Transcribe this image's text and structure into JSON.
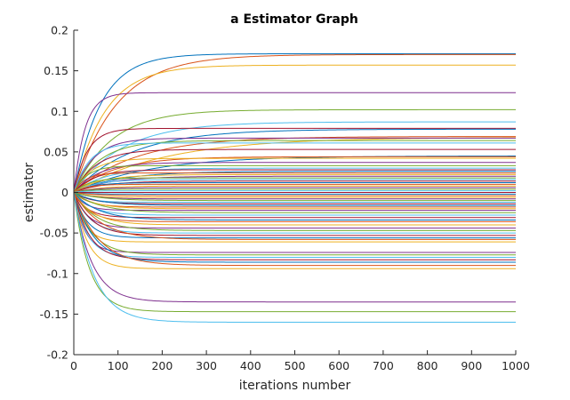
{
  "chart_data": {
    "type": "line",
    "title": "a Estimator Graph",
    "xlabel": "iterations number",
    "ylabel": "estimator",
    "xlim": [
      0,
      1000
    ],
    "ylim": [
      -0.2,
      0.2
    ],
    "xticks": [
      0,
      100,
      200,
      300,
      400,
      500,
      600,
      700,
      800,
      900,
      1000
    ],
    "yticks": [
      -0.2,
      -0.15,
      -0.1,
      -0.05,
      0,
      0.05,
      0.1,
      0.15,
      0.2
    ],
    "xtick_labels": [
      "0",
      "100",
      "200",
      "300",
      "400",
      "500",
      "600",
      "700",
      "800",
      "900",
      "1000"
    ],
    "ytick_labels": [
      "-0.2",
      "-0.15",
      "-0.1",
      "-0.05",
      "0",
      "0.05",
      "0.1",
      "0.15",
      "0.2"
    ],
    "grid": false,
    "legend": "none",
    "series_model": "each series starts at 0 and converges exponentially to its final value: y(x) = final * (1 - exp(-x / rate))",
    "colors": [
      "#0072bd",
      "#d95319",
      "#edb120",
      "#7e2f8e",
      "#77ac30",
      "#4dbeee",
      "#a2142f"
    ],
    "series": [
      {
        "final": 0.171,
        "rate": 60
      },
      {
        "final": 0.17,
        "rate": 95
      },
      {
        "final": 0.157,
        "rate": 70
      },
      {
        "final": 0.123,
        "rate": 25
      },
      {
        "final": 0.102,
        "rate": 85
      },
      {
        "final": 0.087,
        "rate": 110
      },
      {
        "final": 0.079,
        "rate": 30
      },
      {
        "final": 0.078,
        "rate": 130
      },
      {
        "final": 0.069,
        "rate": 140
      },
      {
        "final": 0.068,
        "rate": 200
      },
      {
        "final": 0.067,
        "rate": 45
      },
      {
        "final": 0.064,
        "rate": 60
      },
      {
        "final": 0.061,
        "rate": 35
      },
      {
        "final": 0.053,
        "rate": 50
      },
      {
        "final": 0.045,
        "rate": 170
      },
      {
        "final": 0.044,
        "rate": 90
      },
      {
        "final": 0.042,
        "rate": 40
      },
      {
        "final": 0.037,
        "rate": 55
      },
      {
        "final": 0.033,
        "rate": 30
      },
      {
        "final": 0.03,
        "rate": 70
      },
      {
        "final": 0.028,
        "rate": 45
      },
      {
        "final": 0.026,
        "rate": 100
      },
      {
        "final": 0.024,
        "rate": 25
      },
      {
        "final": 0.022,
        "rate": 60
      },
      {
        "final": 0.02,
        "rate": 80
      },
      {
        "final": 0.018,
        "rate": 35
      },
      {
        "final": 0.016,
        "rate": 50
      },
      {
        "final": 0.014,
        "rate": 65
      },
      {
        "final": 0.012,
        "rate": 40
      },
      {
        "final": 0.01,
        "rate": 30
      },
      {
        "final": 0.008,
        "rate": 55
      },
      {
        "final": 0.006,
        "rate": 45
      },
      {
        "final": 0.004,
        "rate": 35
      },
      {
        "final": 0.002,
        "rate": 25
      },
      {
        "final": 0.0,
        "rate": 40
      },
      {
        "final": -0.002,
        "rate": 30
      },
      {
        "final": -0.004,
        "rate": 50
      },
      {
        "final": -0.006,
        "rate": 35
      },
      {
        "final": -0.008,
        "rate": 45
      },
      {
        "final": -0.01,
        "rate": 60
      },
      {
        "final": -0.012,
        "rate": 30
      },
      {
        "final": -0.014,
        "rate": 40
      },
      {
        "final": -0.016,
        "rate": 55
      },
      {
        "final": -0.018,
        "rate": 35
      },
      {
        "final": -0.02,
        "rate": 45
      },
      {
        "final": -0.022,
        "rate": 25
      },
      {
        "final": -0.025,
        "rate": 60
      },
      {
        "final": -0.028,
        "rate": 40
      },
      {
        "final": -0.031,
        "rate": 30
      },
      {
        "final": -0.034,
        "rate": 55
      },
      {
        "final": -0.036,
        "rate": 35
      },
      {
        "final": -0.04,
        "rate": 45
      },
      {
        "final": -0.044,
        "rate": 30
      },
      {
        "final": -0.047,
        "rate": 50
      },
      {
        "final": -0.05,
        "rate": 35
      },
      {
        "final": -0.053,
        "rate": 40
      },
      {
        "final": -0.056,
        "rate": 30
      },
      {
        "final": -0.058,
        "rate": 60
      },
      {
        "final": -0.061,
        "rate": 25
      },
      {
        "final": -0.074,
        "rate": 25
      },
      {
        "final": -0.077,
        "rate": 40
      },
      {
        "final": -0.08,
        "rate": 30
      },
      {
        "final": -0.083,
        "rate": 35
      },
      {
        "final": -0.086,
        "rate": 45
      },
      {
        "final": -0.09,
        "rate": 55
      },
      {
        "final": -0.094,
        "rate": 30
      },
      {
        "final": -0.135,
        "rate": 40
      },
      {
        "final": -0.147,
        "rate": 35
      },
      {
        "final": -0.16,
        "rate": 45
      }
    ]
  }
}
